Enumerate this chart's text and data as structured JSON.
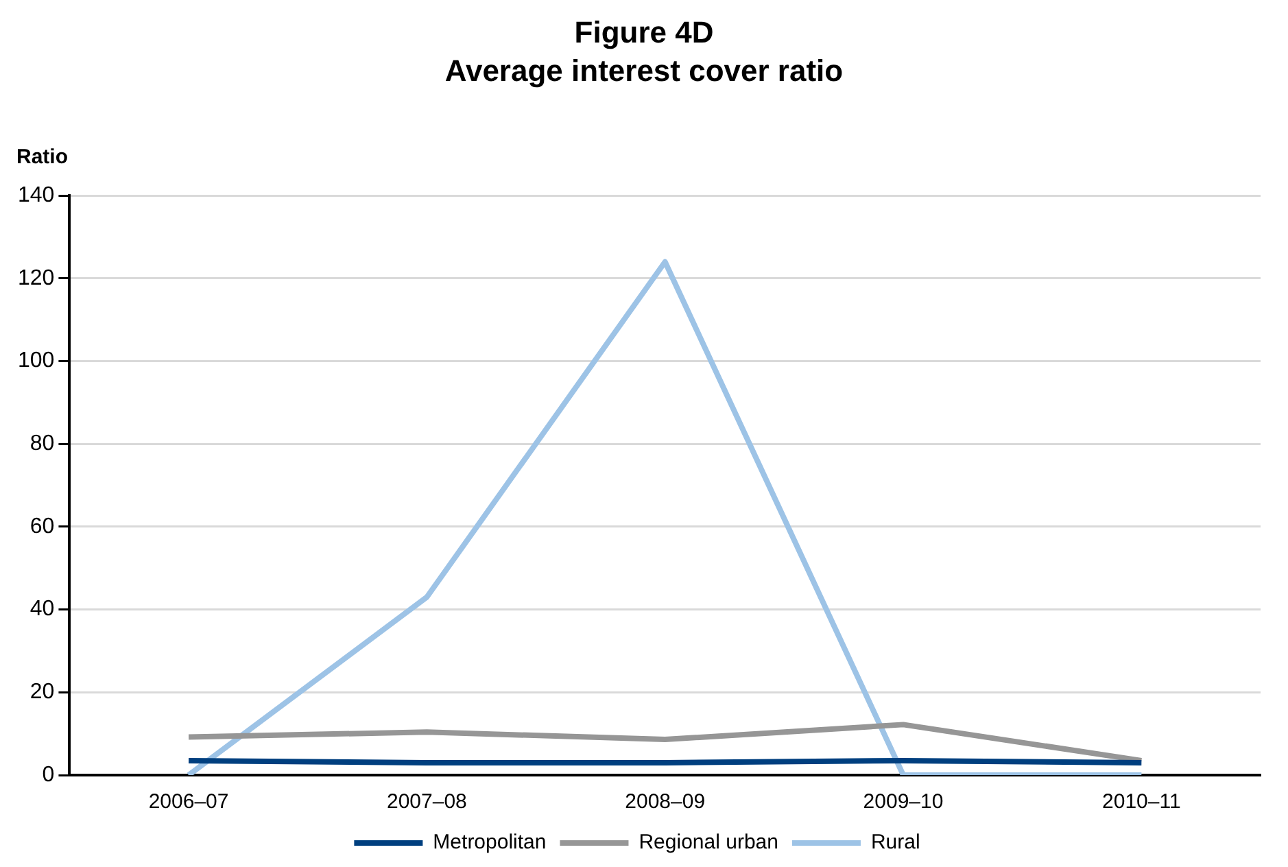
{
  "chart_data": {
    "type": "line",
    "title": "Figure 4D\nAverage interest cover ratio",
    "ylabel": "Ratio",
    "categories": [
      "2006–07",
      "2007–08",
      "2008–09",
      "2009–10",
      "2010–11"
    ],
    "series": [
      {
        "name": "Metropolitan",
        "color": "#003f7f",
        "values": [
          3.5,
          3,
          3,
          3.5,
          3
        ]
      },
      {
        "name": "Regional urban",
        "color": "#969696",
        "values": [
          9.2,
          10.4,
          8.6,
          12.2,
          3.5
        ]
      },
      {
        "name": "Rural",
        "color": "#9dc3e6",
        "values": [
          0,
          43,
          124,
          0,
          0
        ]
      }
    ],
    "ylim": [
      0,
      140
    ],
    "yticks": [
      0,
      20,
      40,
      60,
      80,
      100,
      120,
      140
    ],
    "grid": "y",
    "legend": "bottom",
    "marker": "none",
    "line_style": "solid"
  }
}
